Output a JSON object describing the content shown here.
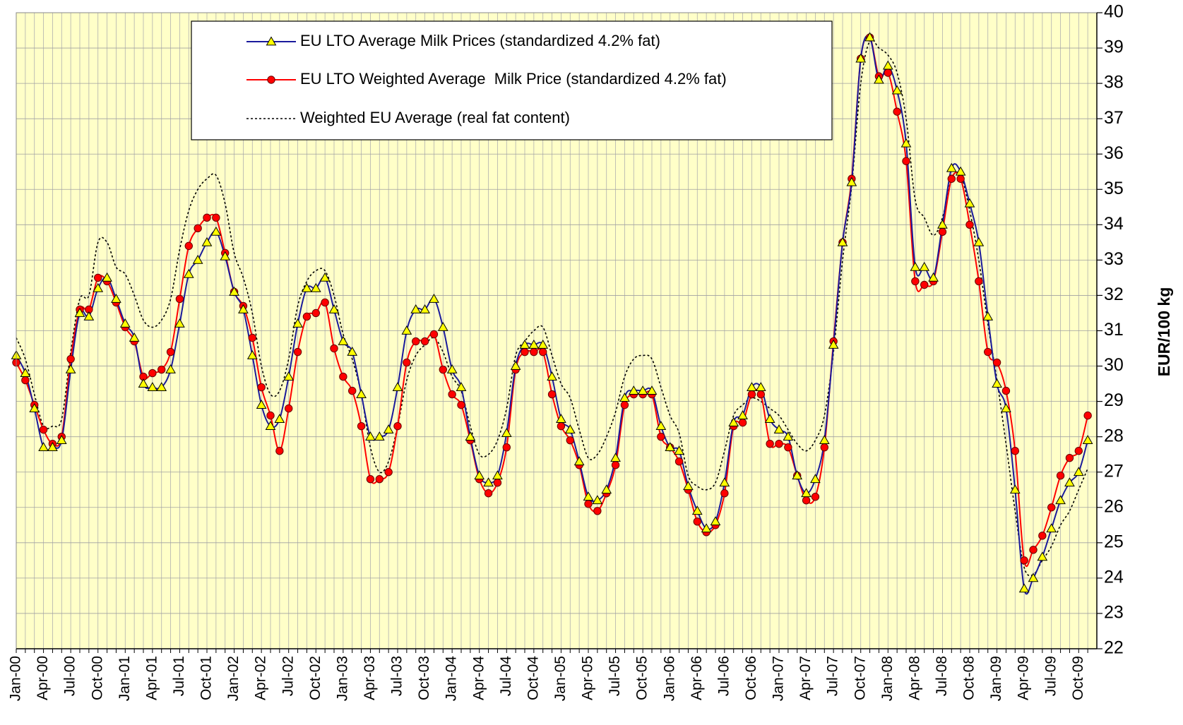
{
  "chart_data": {
    "type": "line",
    "y_axis_label": "EUR/100 kg",
    "y_axis_side": "right",
    "ylim": [
      22,
      40
    ],
    "yticks": [
      22,
      23,
      24,
      25,
      26,
      27,
      28,
      29,
      30,
      31,
      32,
      33,
      34,
      35,
      36,
      37,
      38,
      39,
      40
    ],
    "grid": true,
    "legend": "top",
    "categories": [
      "Jan-00",
      null,
      null,
      "Apr-00",
      null,
      null,
      "Jul-00",
      null,
      null,
      "Oct-00",
      null,
      null,
      "Jan-01",
      null,
      null,
      "Apr-01",
      null,
      null,
      "Jul-01",
      null,
      null,
      "Oct-01",
      null,
      null,
      "Jan-02",
      null,
      null,
      "Apr-02",
      null,
      null,
      "Jul-02",
      null,
      null,
      "Oct-02",
      null,
      null,
      "Jan-03",
      null,
      null,
      "Apr-03",
      null,
      null,
      "Jul-03",
      null,
      null,
      "Oct-03",
      null,
      null,
      "Jan-04",
      null,
      null,
      "Apr-04",
      null,
      null,
      "Jul-04",
      null,
      null,
      "Oct-04",
      null,
      null,
      "Jan-05",
      null,
      null,
      "Apr-05",
      null,
      null,
      "Jul-05",
      null,
      null,
      "Oct-05",
      null,
      null,
      "Jan-06",
      null,
      null,
      "Apr-06",
      null,
      null,
      "Jul-06",
      null,
      null,
      "Oct-06",
      null,
      null,
      "Jan-07",
      null,
      null,
      "Apr-07",
      null,
      null,
      "Jul-07",
      null,
      null,
      "Oct-07",
      null,
      null,
      "Jan-08",
      null,
      null,
      "Apr-08",
      null,
      null,
      "Jul-08",
      null,
      null,
      "Oct-08",
      null,
      null,
      "Jan-09",
      null,
      null,
      "Apr-09",
      null,
      null,
      "Jul-09",
      null,
      null,
      "Oct-09",
      null
    ],
    "series": [
      {
        "name": "EU LTO Average Milk Prices (standardized 4.2% fat)",
        "color": "#1a1a9c",
        "marker": "triangle",
        "marker_color": "#ffff00",
        "line_style": "solid",
        "values": [
          30.3,
          29.8,
          28.8,
          27.7,
          27.7,
          27.9,
          29.9,
          31.5,
          31.4,
          32.2,
          32.5,
          31.9,
          31.2,
          30.8,
          29.5,
          29.4,
          29.4,
          29.9,
          31.2,
          32.6,
          33.0,
          33.5,
          33.8,
          33.1,
          32.1,
          31.6,
          30.3,
          28.9,
          28.3,
          28.5,
          29.7,
          31.2,
          32.2,
          32.2,
          32.5,
          31.6,
          30.7,
          30.4,
          29.2,
          28.0,
          28.0,
          28.2,
          29.4,
          31.0,
          31.6,
          31.6,
          31.9,
          31.1,
          29.9,
          29.4,
          28.0,
          26.9,
          26.7,
          26.9,
          28.1,
          30.0,
          30.6,
          30.6,
          30.6,
          29.7,
          28.5,
          28.2,
          27.3,
          26.3,
          26.2,
          26.5,
          27.4,
          29.1,
          29.3,
          29.3,
          29.3,
          28.3,
          27.7,
          27.6,
          26.6,
          25.9,
          25.4,
          25.6,
          26.7,
          28.4,
          28.6,
          29.4,
          29.4,
          28.5,
          28.2,
          28.0,
          26.9,
          26.4,
          26.8,
          27.9,
          30.6,
          33.5,
          35.2,
          38.7,
          39.3,
          38.1,
          38.5,
          37.8,
          36.3,
          32.8,
          32.8,
          32.5,
          34.0,
          35.6,
          35.5,
          34.6,
          33.5,
          31.4,
          29.5,
          28.8,
          26.5,
          23.7,
          24.0,
          24.6,
          25.4,
          26.2,
          26.7,
          27.0,
          27.9
        ]
      },
      {
        "name": "EU LTO Weighted Average  Milk Price (standardized 4.2% fat)",
        "color": "#ff0000",
        "marker": "circle",
        "marker_color": "#ff0000",
        "line_style": "solid",
        "values": [
          30.1,
          29.6,
          28.9,
          28.2,
          27.8,
          28.0,
          30.2,
          31.6,
          31.6,
          32.5,
          32.4,
          31.8,
          31.1,
          30.7,
          29.7,
          29.8,
          29.9,
          30.4,
          31.9,
          33.4,
          33.9,
          34.2,
          34.2,
          33.2,
          32.1,
          31.7,
          30.8,
          29.4,
          28.6,
          27.6,
          28.8,
          30.4,
          31.4,
          31.5,
          31.8,
          30.5,
          29.7,
          29.3,
          28.3,
          26.8,
          26.8,
          27.0,
          28.3,
          30.1,
          30.7,
          30.7,
          30.9,
          29.9,
          29.2,
          28.9,
          27.9,
          26.8,
          26.4,
          26.7,
          27.7,
          29.9,
          30.4,
          30.4,
          30.4,
          29.2,
          28.3,
          27.9,
          27.2,
          26.1,
          25.9,
          26.4,
          27.2,
          28.9,
          29.2,
          29.2,
          29.2,
          28.0,
          27.7,
          27.3,
          26.5,
          25.6,
          25.3,
          25.5,
          26.4,
          28.3,
          28.4,
          29.2,
          29.2,
          27.8,
          27.8,
          27.7,
          26.9,
          26.2,
          26.3,
          27.7,
          30.7,
          33.5,
          35.3,
          38.7,
          39.3,
          38.2,
          38.3,
          37.2,
          35.8,
          32.4,
          32.3,
          32.4,
          33.8,
          35.3,
          35.3,
          34.0,
          32.4,
          30.4,
          30.1,
          29.3,
          27.6,
          24.5,
          24.8,
          25.2,
          26.0,
          26.9,
          27.4,
          27.6,
          28.6
        ]
      },
      {
        "name": "Weighted EU Average (real fat content)",
        "color": "#000000",
        "marker": null,
        "line_style": "dotted",
        "values": [
          30.8,
          30.2,
          29.2,
          28.3,
          28.3,
          28.5,
          30.4,
          31.9,
          32.0,
          33.5,
          33.5,
          32.8,
          32.6,
          32.0,
          31.3,
          31.1,
          31.3,
          31.9,
          33.3,
          34.4,
          35.0,
          35.3,
          35.4,
          34.6,
          33.2,
          32.5,
          31.5,
          30.0,
          29.2,
          29.3,
          30.2,
          31.7,
          32.4,
          32.7,
          32.7,
          32.0,
          30.9,
          30.2,
          29.2,
          27.7,
          27.0,
          27.3,
          28.3,
          29.6,
          30.3,
          30.6,
          30.8,
          30.4,
          29.7,
          29.3,
          28.3,
          27.5,
          27.5,
          27.9,
          28.8,
          30.3,
          30.7,
          31.0,
          31.1,
          30.3,
          29.5,
          29.1,
          28.2,
          27.4,
          27.5,
          28.0,
          28.7,
          29.7,
          30.2,
          30.3,
          30.2,
          29.4,
          28.6,
          28.1,
          26.9,
          26.6,
          26.5,
          26.7,
          27.6,
          28.6,
          28.9,
          29.1,
          29.0,
          28.8,
          28.6,
          28.2,
          27.8,
          27.6,
          27.9,
          28.6,
          30.4,
          33.0,
          35.1,
          38.0,
          39.2,
          39.0,
          38.8,
          38.3,
          37.0,
          34.7,
          34.2,
          33.7,
          34.2,
          35.3,
          35.4,
          34.4,
          33.0,
          31.2,
          29.6,
          27.8,
          25.9,
          24.3,
          24.1,
          24.5,
          24.9,
          25.5,
          25.9,
          26.5,
          27.1
        ]
      }
    ]
  }
}
